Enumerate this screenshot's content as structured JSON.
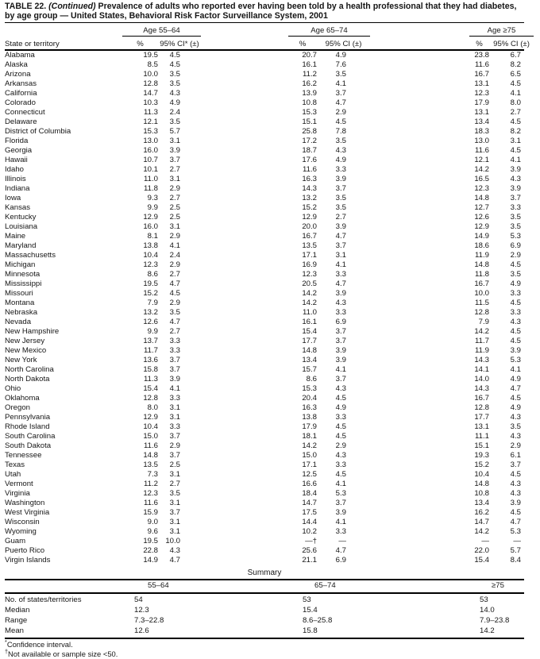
{
  "title": {
    "prefix": "TABLE 22.",
    "continued": "(Continued)",
    "rest": "Prevalence of adults who reported ever having been told by a health professional that they had diabetes, by age group — United States, Behavioral Risk Factor Surveillance System, 2001"
  },
  "header": {
    "state_col": "State or territory",
    "groups": [
      {
        "label": "Age 55–64",
        "pct": "%",
        "ci": "95% CI* (±)"
      },
      {
        "label": "Age 65–74",
        "pct": "%",
        "ci": "95% CI (±)"
      },
      {
        "label": "Age ≥75",
        "pct": "%",
        "ci": "95% CI (±)"
      }
    ]
  },
  "rows": [
    {
      "state": "Alabama",
      "v": [
        "19.5",
        "4.5",
        "20.7",
        "4.9",
        "23.8",
        "6.7"
      ]
    },
    {
      "state": "Alaska",
      "v": [
        "8.5",
        "4.5",
        "16.1",
        "7.6",
        "11.6",
        "8.2"
      ]
    },
    {
      "state": "Arizona",
      "v": [
        "10.0",
        "3.5",
        "11.2",
        "3.5",
        "16.7",
        "6.5"
      ]
    },
    {
      "state": "Arkansas",
      "v": [
        "12.8",
        "3.5",
        "16.2",
        "4.1",
        "13.1",
        "4.5"
      ]
    },
    {
      "state": "California",
      "v": [
        "14.7",
        "4.3",
        "13.9",
        "3.7",
        "12.3",
        "4.1"
      ]
    },
    {
      "state": "Colorado",
      "v": [
        "10.3",
        "4.9",
        "10.8",
        "4.7",
        "17.9",
        "8.0"
      ]
    },
    {
      "state": "Connecticut",
      "v": [
        "11.3",
        "2.4",
        "15.3",
        "2.9",
        "13.1",
        "2.7"
      ]
    },
    {
      "state": "Delaware",
      "v": [
        "12.1",
        "3.5",
        "15.1",
        "4.5",
        "13.4",
        "4.5"
      ]
    },
    {
      "state": "District of Columbia",
      "v": [
        "15.3",
        "5.7",
        "25.8",
        "7.8",
        "18.3",
        "8.2"
      ]
    },
    {
      "state": "Florida",
      "v": [
        "13.0",
        "3.1",
        "17.2",
        "3.5",
        "13.0",
        "3.1"
      ]
    },
    {
      "state": "Georgia",
      "v": [
        "16.0",
        "3.9",
        "18.7",
        "4.3",
        "11.6",
        "4.5"
      ]
    },
    {
      "state": "Hawaii",
      "v": [
        "10.7",
        "3.7",
        "17.6",
        "4.9",
        "12.1",
        "4.1"
      ]
    },
    {
      "state": "Idaho",
      "v": [
        "10.1",
        "2.7",
        "11.6",
        "3.3",
        "14.2",
        "3.9"
      ]
    },
    {
      "state": "Illinois",
      "v": [
        "11.0",
        "3.1",
        "16.3",
        "3.9",
        "16.5",
        "4.3"
      ]
    },
    {
      "state": "Indiana",
      "v": [
        "11.8",
        "2.9",
        "14.3",
        "3.7",
        "12.3",
        "3.9"
      ]
    },
    {
      "state": "Iowa",
      "v": [
        "9.3",
        "2.7",
        "13.2",
        "3.5",
        "14.8",
        "3.7"
      ]
    },
    {
      "state": "Kansas",
      "v": [
        "9.9",
        "2.5",
        "15.2",
        "3.5",
        "12.7",
        "3.3"
      ]
    },
    {
      "state": "Kentucky",
      "v": [
        "12.9",
        "2.5",
        "12.9",
        "2.7",
        "12.6",
        "3.5"
      ]
    },
    {
      "state": "Louisiana",
      "v": [
        "16.0",
        "3.1",
        "20.0",
        "3.9",
        "12.9",
        "3.5"
      ]
    },
    {
      "state": "Maine",
      "v": [
        "8.1",
        "2.9",
        "16.7",
        "4.7",
        "14.9",
        "5.3"
      ]
    },
    {
      "state": "Maryland",
      "v": [
        "13.8",
        "4.1",
        "13.5",
        "3.7",
        "18.6",
        "6.9"
      ]
    },
    {
      "state": "Massachusetts",
      "v": [
        "10.4",
        "2.4",
        "17.1",
        "3.1",
        "11.9",
        "2.9"
      ]
    },
    {
      "state": "Michigan",
      "v": [
        "12.3",
        "2.9",
        "16.9",
        "4.1",
        "14.8",
        "4.5"
      ]
    },
    {
      "state": "Minnesota",
      "v": [
        "8.6",
        "2.7",
        "12.3",
        "3.3",
        "11.8",
        "3.5"
      ]
    },
    {
      "state": "Mississippi",
      "v": [
        "19.5",
        "4.7",
        "20.5",
        "4.7",
        "16.7",
        "4.9"
      ]
    },
    {
      "state": "Missouri",
      "v": [
        "15.2",
        "4.5",
        "14.2",
        "3.9",
        "10.0",
        "3.3"
      ]
    },
    {
      "state": "Montana",
      "v": [
        "7.9",
        "2.9",
        "14.2",
        "4.3",
        "11.5",
        "4.5"
      ]
    },
    {
      "state": "Nebraska",
      "v": [
        "13.2",
        "3.5",
        "11.0",
        "3.3",
        "12.8",
        "3.3"
      ]
    },
    {
      "state": "Nevada",
      "v": [
        "12.6",
        "4.7",
        "16.1",
        "6.9",
        "7.9",
        "4.3"
      ]
    },
    {
      "state": "New Hampshire",
      "v": [
        "9.9",
        "2.7",
        "15.4",
        "3.7",
        "14.2",
        "4.5"
      ]
    },
    {
      "state": "New Jersey",
      "v": [
        "13.7",
        "3.3",
        "17.7",
        "3.7",
        "11.7",
        "4.5"
      ]
    },
    {
      "state": "New Mexico",
      "v": [
        "11.7",
        "3.3",
        "14.8",
        "3.9",
        "11.9",
        "3.9"
      ]
    },
    {
      "state": "New York",
      "v": [
        "13.6",
        "3.7",
        "13.4",
        "3.9",
        "14.3",
        "5.3"
      ]
    },
    {
      "state": "North Carolina",
      "v": [
        "15.8",
        "3.7",
        "15.7",
        "4.1",
        "14.1",
        "4.1"
      ]
    },
    {
      "state": "North Dakota",
      "v": [
        "11.3",
        "3.9",
        "8.6",
        "3.7",
        "14.0",
        "4.9"
      ]
    },
    {
      "state": "Ohio",
      "v": [
        "15.4",
        "4.1",
        "15.3",
        "4.3",
        "14.3",
        "4.7"
      ]
    },
    {
      "state": "Oklahoma",
      "v": [
        "12.8",
        "3.3",
        "20.4",
        "4.5",
        "16.7",
        "4.5"
      ]
    },
    {
      "state": "Oregon",
      "v": [
        "8.0",
        "3.1",
        "16.3",
        "4.9",
        "12.8",
        "4.9"
      ]
    },
    {
      "state": "Pennsylvania",
      "v": [
        "12.9",
        "3.1",
        "13.8",
        "3.3",
        "17.7",
        "4.3"
      ]
    },
    {
      "state": "Rhode Island",
      "v": [
        "10.4",
        "3.3",
        "17.9",
        "4.5",
        "13.1",
        "3.5"
      ]
    },
    {
      "state": "South Carolina",
      "v": [
        "15.0",
        "3.7",
        "18.1",
        "4.5",
        "11.1",
        "4.3"
      ]
    },
    {
      "state": "South Dakota",
      "v": [
        "11.6",
        "2.9",
        "14.2",
        "2.9",
        "15.1",
        "2.9"
      ]
    },
    {
      "state": "Tennessee",
      "v": [
        "14.8",
        "3.7",
        "15.0",
        "4.3",
        "19.3",
        "6.1"
      ]
    },
    {
      "state": "Texas",
      "v": [
        "13.5",
        "2.5",
        "17.1",
        "3.3",
        "15.2",
        "3.7"
      ]
    },
    {
      "state": "Utah",
      "v": [
        "7.3",
        "3.1",
        "12.5",
        "4.5",
        "10.4",
        "4.5"
      ]
    },
    {
      "state": "Vermont",
      "v": [
        "11.2",
        "2.7",
        "16.6",
        "4.1",
        "14.8",
        "4.3"
      ]
    },
    {
      "state": "Virginia",
      "v": [
        "12.3",
        "3.5",
        "18.4",
        "5.3",
        "10.8",
        "4.3"
      ]
    },
    {
      "state": "Washington",
      "v": [
        "11.6",
        "3.1",
        "14.7",
        "3.7",
        "13.4",
        "3.9"
      ]
    },
    {
      "state": "West Virginia",
      "v": [
        "15.9",
        "3.7",
        "17.5",
        "3.9",
        "16.2",
        "4.5"
      ]
    },
    {
      "state": "Wisconsin",
      "v": [
        "9.0",
        "3.1",
        "14.4",
        "4.1",
        "14.7",
        "4.7"
      ]
    },
    {
      "state": "Wyoming",
      "v": [
        "9.6",
        "3.1",
        "10.2",
        "3.3",
        "14.2",
        "5.3"
      ]
    },
    {
      "state": "Guam",
      "v": [
        "19.5",
        "10.0",
        "—†",
        "—",
        "—",
        "—"
      ]
    },
    {
      "state": "Puerto Rico",
      "v": [
        "22.8",
        "4.3",
        "25.6",
        "4.7",
        "22.0",
        "5.7"
      ]
    },
    {
      "state": "Virgin Islands",
      "v": [
        "14.9",
        "4.7",
        "21.1",
        "6.9",
        "15.4",
        "8.4"
      ]
    }
  ],
  "summary": {
    "title": "Summary",
    "col_headers": [
      "55–64",
      "65–74",
      "≥75"
    ],
    "rows": [
      {
        "label": "No. of states/territories",
        "values": [
          "54",
          "53",
          "53"
        ]
      },
      {
        "label": "Median",
        "values": [
          "12.3",
          "15.4",
          "14.0"
        ]
      },
      {
        "label": "Range",
        "values": [
          "7.3–22.8",
          "8.6–25.8",
          "7.9–23.8"
        ]
      },
      {
        "label": "Mean",
        "values": [
          "12.6",
          "15.8",
          "14.2"
        ]
      }
    ]
  },
  "footnotes": [
    {
      "marker": "*",
      "text": "Confidence interval."
    },
    {
      "marker": "†",
      "text": "Not available or sample size <50."
    }
  ]
}
